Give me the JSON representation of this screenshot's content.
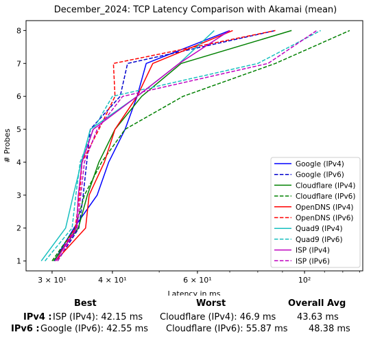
{
  "chart_data": {
    "type": "line",
    "title": "December_2024: TCP Latency Comparison with Akamai (mean)",
    "xlabel": "Latency in ms",
    "ylabel": "# Probes",
    "x_scale": "log",
    "xlim": [
      26.5,
      132
    ],
    "ylim": [
      0.7,
      8.3
    ],
    "x_ticks": [
      {
        "value": 30,
        "label": "3 × 10¹"
      },
      {
        "value": 40,
        "label": "4 × 10¹"
      },
      {
        "value": 60,
        "label": "6 × 10¹"
      },
      {
        "value": 100,
        "label": "10²"
      }
    ],
    "y_ticks": [
      1,
      2,
      3,
      4,
      5,
      6,
      7,
      8
    ],
    "grid": false,
    "legend_position": "lower right",
    "series": [
      {
        "name": "Google (IPv4)",
        "color": "#0000ff",
        "dash": "solid",
        "points": [
          [
            30.3,
            1
          ],
          [
            33.3,
            2
          ],
          [
            37.2,
            3
          ],
          [
            39.3,
            4
          ],
          [
            42.5,
            5
          ],
          [
            45.0,
            6
          ],
          [
            47.0,
            7
          ],
          [
            70.0,
            8
          ]
        ]
      },
      {
        "name": "Google (IPv6)",
        "color": "#0000cc",
        "dash": "dashed",
        "points": [
          [
            30.8,
            1
          ],
          [
            34.1,
            2
          ],
          [
            34.8,
            3
          ],
          [
            35.4,
            4
          ],
          [
            36.0,
            5
          ],
          [
            41.5,
            6
          ],
          [
            43.0,
            7
          ],
          [
            87.0,
            8
          ]
        ]
      },
      {
        "name": "Cloudflare (IPv4)",
        "color": "#008000",
        "dash": "solid",
        "points": [
          [
            30.2,
            1
          ],
          [
            34.0,
            2
          ],
          [
            35.5,
            3
          ],
          [
            37.5,
            4
          ],
          [
            40.5,
            5
          ],
          [
            46.0,
            6
          ],
          [
            55.5,
            7
          ],
          [
            94.0,
            8
          ]
        ]
      },
      {
        "name": "Cloudflare (IPv6)",
        "color": "#008000",
        "dash": "dashed",
        "points": [
          [
            30.0,
            1
          ],
          [
            33.5,
            2
          ],
          [
            35.0,
            3
          ],
          [
            38.0,
            4
          ],
          [
            42.5,
            5
          ],
          [
            56.0,
            6
          ],
          [
            87.0,
            7
          ],
          [
            124.0,
            8
          ]
        ]
      },
      {
        "name": "OpenDNS (IPv4)",
        "color": "#ff0000",
        "dash": "solid",
        "points": [
          [
            30.5,
            1
          ],
          [
            35.2,
            2
          ],
          [
            35.8,
            3
          ],
          [
            38.5,
            4
          ],
          [
            40.5,
            5
          ],
          [
            45.0,
            6
          ],
          [
            48.5,
            7
          ],
          [
            71.0,
            8
          ]
        ]
      },
      {
        "name": "OpenDNS (IPv6)",
        "color": "#ff0000",
        "dash": "dashed",
        "points": [
          [
            30.5,
            1
          ],
          [
            33.5,
            2
          ],
          [
            34.2,
            3
          ],
          [
            34.6,
            4
          ],
          [
            37.5,
            5
          ],
          [
            40.5,
            6
          ],
          [
            40.2,
            7
          ],
          [
            87.0,
            8
          ]
        ]
      },
      {
        "name": "Quad9 (IPv4)",
        "color": "#17bfbf",
        "dash": "solid",
        "points": [
          [
            28.5,
            1
          ],
          [
            32.0,
            2
          ],
          [
            33.2,
            3
          ],
          [
            34.5,
            4
          ],
          [
            36.0,
            5
          ],
          [
            45.0,
            6
          ],
          [
            55.0,
            7
          ],
          [
            65.0,
            8
          ]
        ]
      },
      {
        "name": "Quad9 (IPv6)",
        "color": "#17bfbf",
        "dash": "dashed",
        "points": [
          [
            29.0,
            1
          ],
          [
            33.0,
            2
          ],
          [
            33.6,
            3
          ],
          [
            34.3,
            4
          ],
          [
            36.5,
            5
          ],
          [
            40.0,
            6
          ],
          [
            80.0,
            7
          ],
          [
            108.0,
            8
          ]
        ]
      },
      {
        "name": "ISP (IPv4)",
        "color": "#bf00bf",
        "dash": "solid",
        "points": [
          [
            30.5,
            1
          ],
          [
            33.7,
            2
          ],
          [
            34.0,
            3
          ],
          [
            34.6,
            4
          ],
          [
            36.5,
            5
          ],
          [
            45.0,
            6
          ],
          [
            55.0,
            7
          ],
          [
            70.0,
            8
          ]
        ]
      },
      {
        "name": "ISP (IPv6)",
        "color": "#bf00bf",
        "dash": "dashed",
        "points": [
          [
            30.8,
            1
          ],
          [
            33.8,
            2
          ],
          [
            34.4,
            3
          ],
          [
            35.0,
            4
          ],
          [
            37.2,
            5
          ],
          [
            42.0,
            6
          ],
          [
            84.0,
            7
          ],
          [
            106.0,
            8
          ]
        ]
      }
    ]
  },
  "summary": {
    "headers": {
      "best": "Best",
      "worst": "Worst",
      "avg": "Overall Avg"
    },
    "rows": [
      {
        "label": "IPv4 :",
        "best": "ISP (IPv4): 42.15 ms",
        "worst": "Cloudflare (IPv4): 46.9 ms",
        "avg": "43.63 ms"
      },
      {
        "label": "IPv6 :",
        "best": "Google (IPv6): 42.55 ms",
        "worst": "Cloudflare (IPv6): 55.87 ms",
        "avg": "48.38 ms"
      }
    ]
  }
}
